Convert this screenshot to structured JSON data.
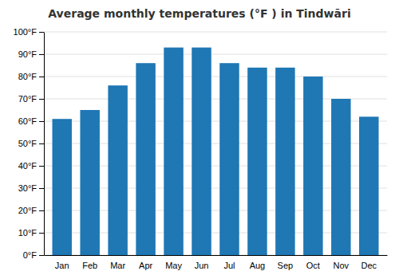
{
  "chart_data": {
    "type": "bar",
    "title": "Average monthly temperatures (°F ) in Tindwāri",
    "categories": [
      "Jan",
      "Feb",
      "Mar",
      "Apr",
      "May",
      "Jun",
      "Jul",
      "Aug",
      "Sep",
      "Oct",
      "Nov",
      "Dec"
    ],
    "values": [
      61,
      65,
      76,
      86,
      93,
      93,
      86,
      84,
      84,
      80,
      70,
      62
    ],
    "ylim": [
      0,
      100
    ],
    "yticks": [
      {
        "value": 0,
        "label": "0°F"
      },
      {
        "value": 10,
        "label": "10°F"
      },
      {
        "value": 20,
        "label": "20°F"
      },
      {
        "value": 30,
        "label": "30°F"
      },
      {
        "value": 40,
        "label": "40°F"
      },
      {
        "value": 50,
        "label": "50°F"
      },
      {
        "value": 60,
        "label": "60°F"
      },
      {
        "value": 70,
        "label": "70°F"
      },
      {
        "value": 80,
        "label": "80°F"
      },
      {
        "value": 90,
        "label": "90°F"
      },
      {
        "value": 100,
        "label": "100°F"
      }
    ],
    "grid": true
  }
}
